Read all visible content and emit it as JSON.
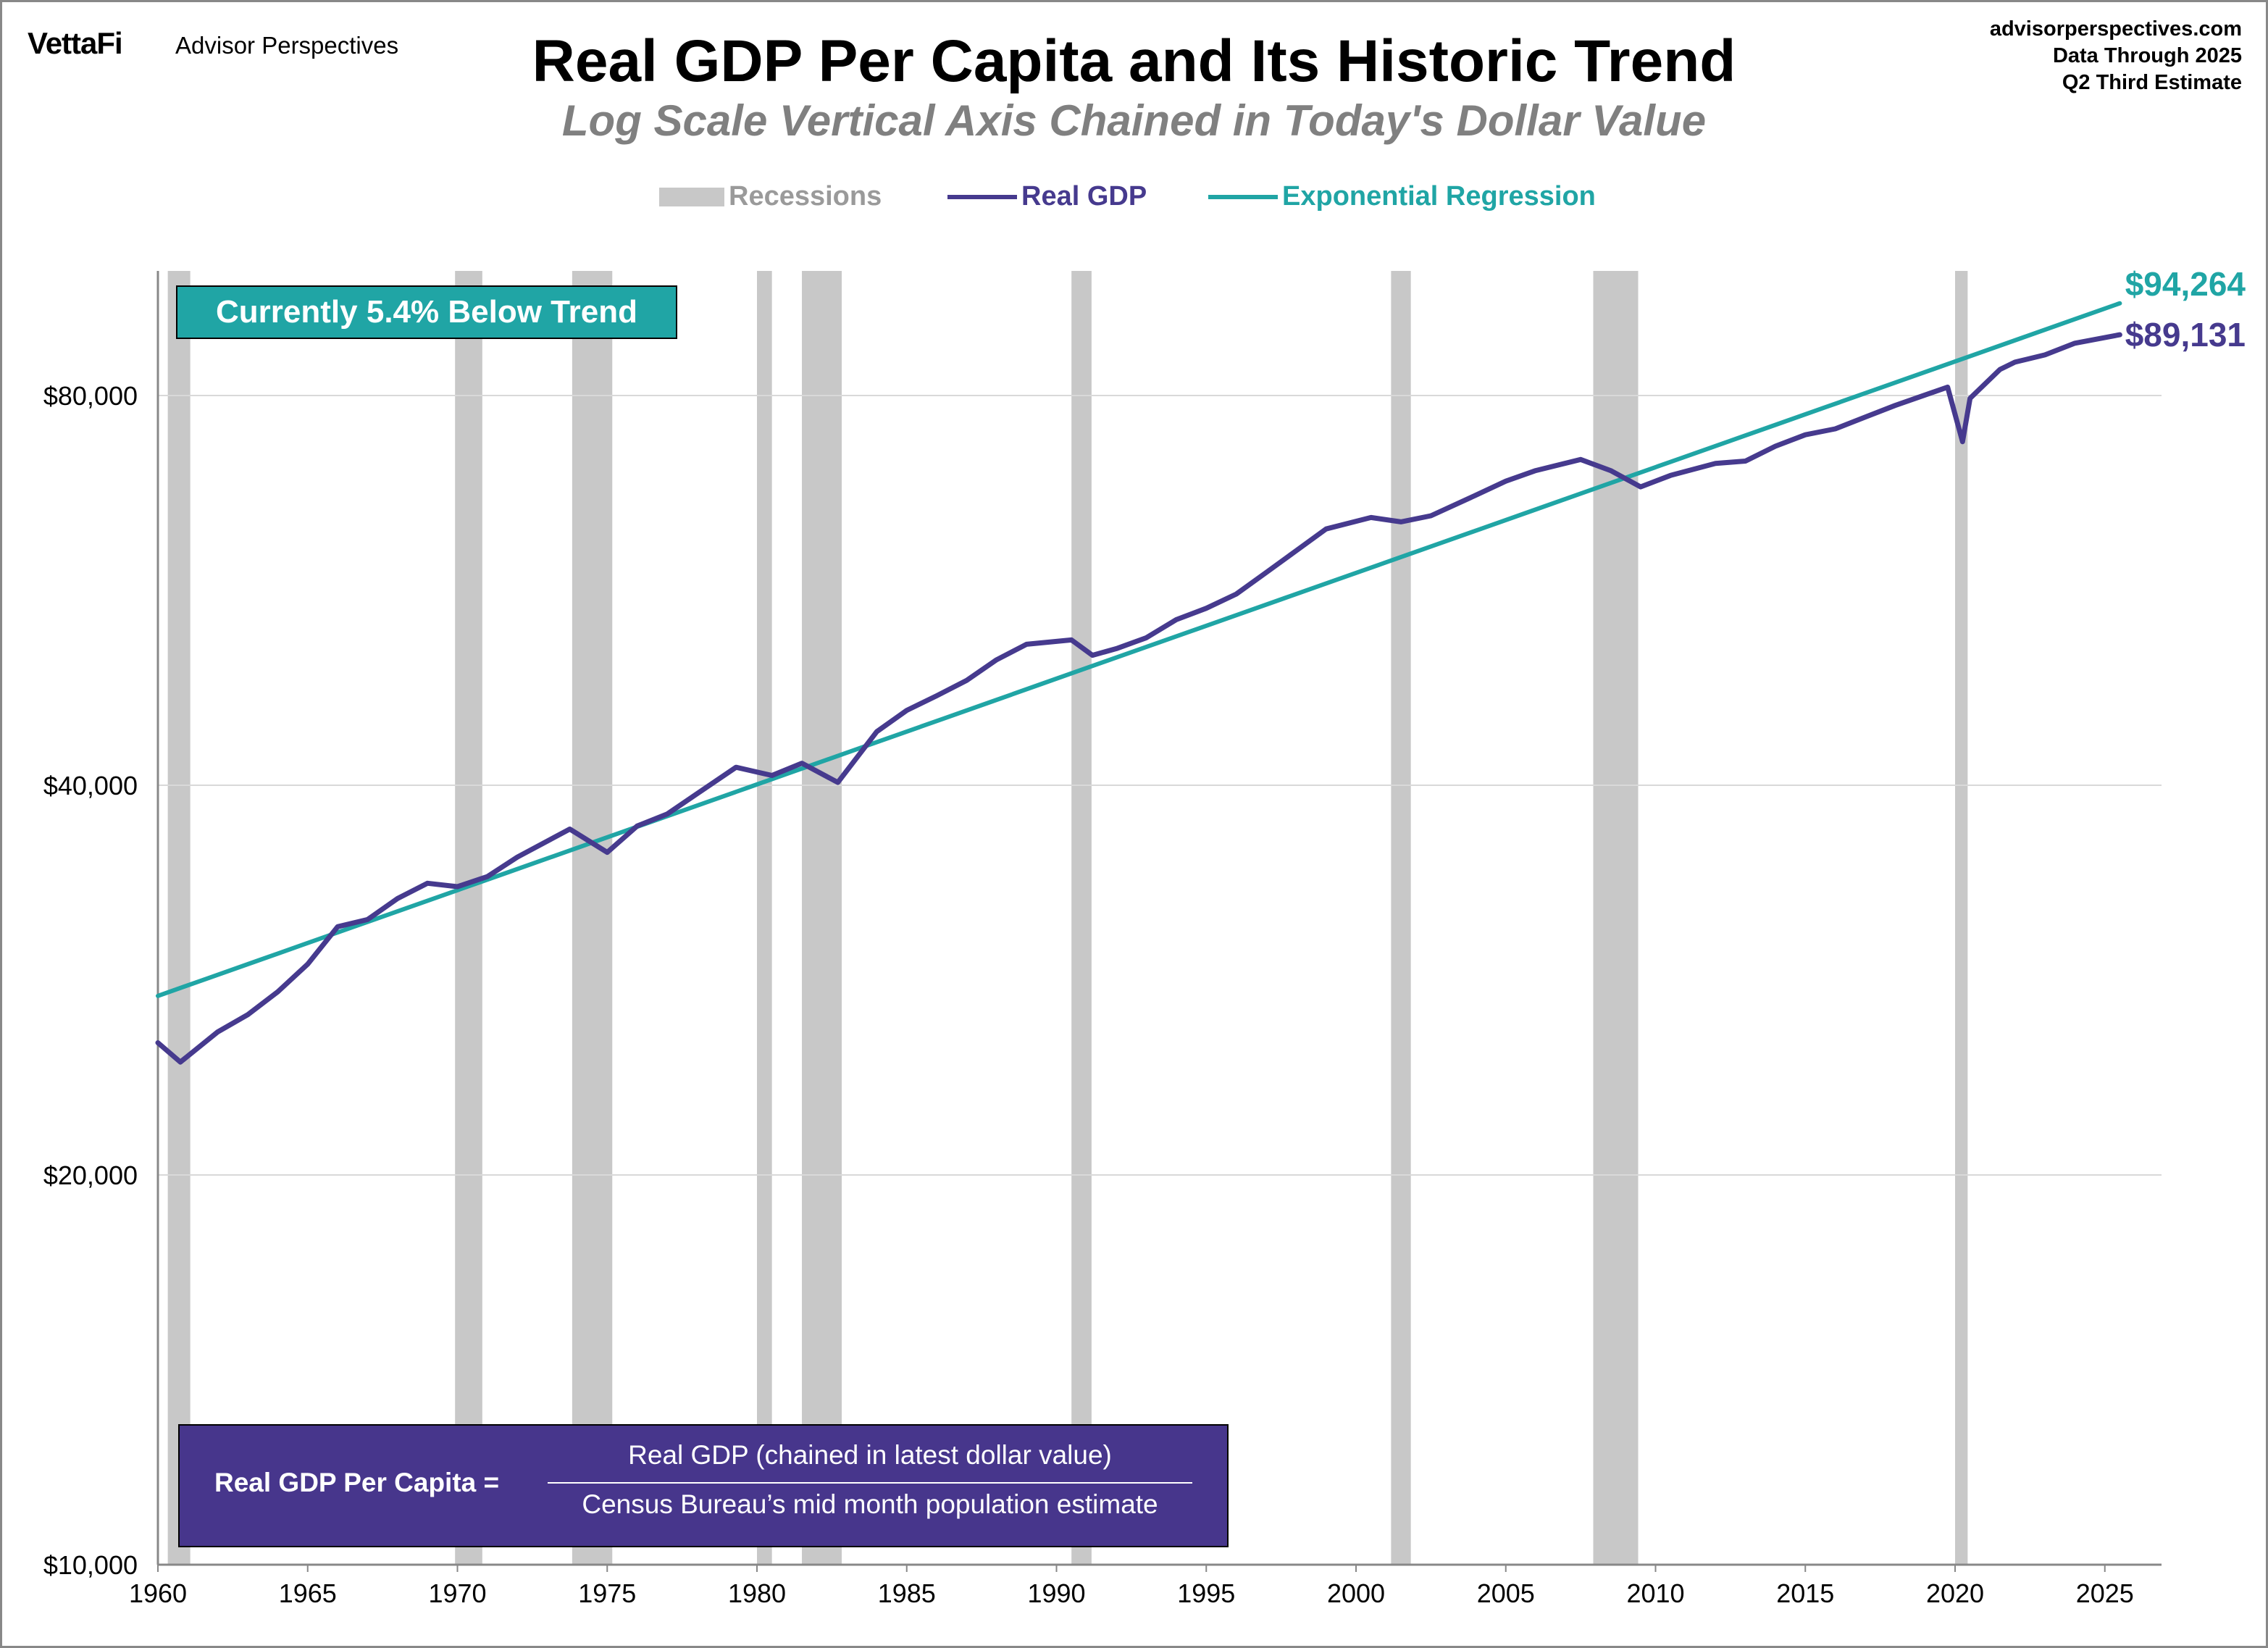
{
  "header": {
    "logo": "VettaFi",
    "brand": "Advisor Perspectives",
    "title": "Real GDP Per Capita and Its Historic Trend",
    "subtitle": "Log Scale Vertical Axis Chained in Today's Dollar Value",
    "source_lines": [
      "advisorperspectives.com",
      "Data Through 2025",
      "Q2 Third Estimate"
    ]
  },
  "callout": "Currently 5.4% Below Trend",
  "formula": {
    "label": "Real GDP Per Capita =",
    "numerator": "Real GDP (chained in latest dollar value)",
    "denominator": "Census Bureau’s mid month population estimate"
  },
  "colors": {
    "real_gdp": "#463a8e",
    "trend": "#20a5a5",
    "recession": "#c8c8c8",
    "grid": "#d9d9d9"
  },
  "chart_data": {
    "type": "line",
    "title": "Real GDP Per Capita and Its Historic Trend",
    "subtitle": "Log Scale Vertical Axis Chained in Today's Dollar Value",
    "y_scale": "log",
    "ylim": [
      10000,
      100000
    ],
    "xlim": [
      1960,
      2027
    ],
    "grid": "horizontal",
    "legend_position": "top",
    "y_ticks": [
      10000,
      20000,
      40000,
      80000
    ],
    "y_tick_labels": [
      "$10,000",
      "$20,000",
      "$40,000",
      "$80,000"
    ],
    "x_ticks": [
      1960,
      1965,
      1970,
      1975,
      1980,
      1985,
      1990,
      1995,
      2000,
      2005,
      2010,
      2015,
      2020,
      2025
    ],
    "x_tick_labels": [
      "1960",
      "1965",
      "1970",
      "1975",
      "1980",
      "1985",
      "1990",
      "1995",
      "2000",
      "2005",
      "2010",
      "2015",
      "2020",
      "2025"
    ],
    "legend": [
      "Recessions",
      "Real GDP",
      "Exponential Regression"
    ],
    "recessions": [
      [
        1960.33,
        1961.08
      ],
      [
        1969.92,
        1970.83
      ],
      [
        1973.83,
        1975.17
      ],
      [
        1980.0,
        1980.5
      ],
      [
        1981.5,
        1982.83
      ],
      [
        1990.5,
        1991.17
      ],
      [
        2001.17,
        2001.83
      ],
      [
        2007.92,
        2009.42
      ],
      [
        2020.0,
        2020.42
      ]
    ],
    "series": [
      {
        "name": "Real GDP",
        "x": [
          1960,
          1960.75,
          1962,
          1963,
          1964,
          1965,
          1966,
          1967,
          1968,
          1969,
          1970,
          1971,
          1972,
          1973.75,
          1975,
          1976,
          1977,
          1978,
          1979.3,
          1980.5,
          1981.5,
          1982.7,
          1984,
          1985,
          1986,
          1987,
          1988,
          1989,
          1990.5,
          1991.2,
          1992,
          1993,
          1994,
          1995,
          1996,
          1997,
          1998,
          1999,
          2000.5,
          2001.5,
          2002.5,
          2004,
          2005,
          2006,
          2007.5,
          2008.5,
          2009.5,
          2010.5,
          2012,
          2013,
          2014,
          2015,
          2016,
          2017,
          2018,
          2019.75,
          2020.25,
          2020.5,
          2021.5,
          2022,
          2023,
          2024,
          2025.5
        ],
        "y": [
          25300,
          24450,
          25800,
          26600,
          27700,
          29100,
          31100,
          31500,
          32700,
          33600,
          33400,
          34000,
          35200,
          37000,
          35500,
          37200,
          38000,
          39400,
          41300,
          40700,
          41600,
          40200,
          44000,
          45700,
          46900,
          48200,
          50000,
          51400,
          51800,
          50400,
          51000,
          52000,
          53700,
          54800,
          56200,
          58400,
          60700,
          63100,
          64400,
          63900,
          64600,
          67000,
          68700,
          70000,
          71400,
          70000,
          68000,
          69400,
          70900,
          71200,
          73100,
          74600,
          75400,
          77000,
          78600,
          81200,
          73700,
          79600,
          83800,
          84900,
          86000,
          87800,
          89131
        ]
      },
      {
        "name": "Exponential Regression",
        "x": [
          1960,
          2025.5
        ],
        "y": [
          27500,
          94264
        ]
      }
    ],
    "end_labels": {
      "trend": "$94,264",
      "real_gdp": "$89,131"
    }
  }
}
